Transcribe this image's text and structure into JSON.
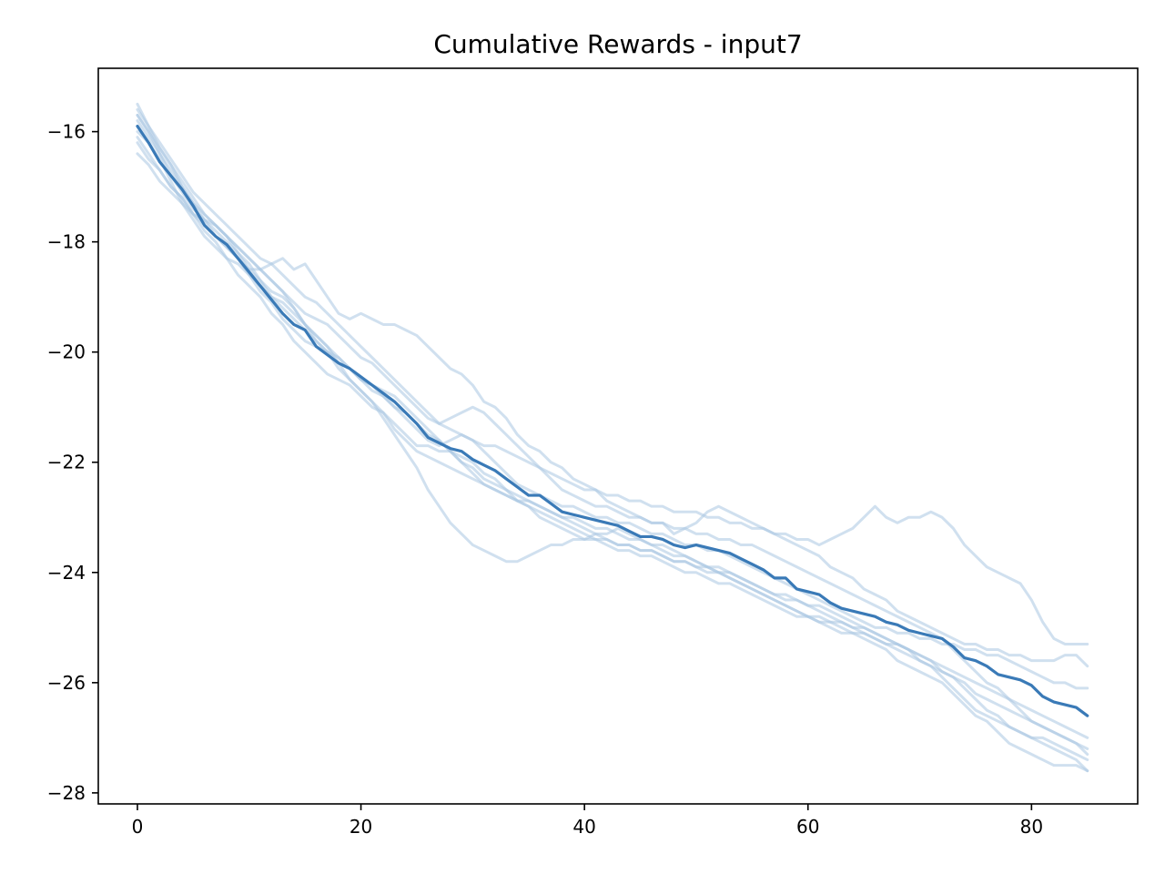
{
  "chart_data": {
    "type": "line",
    "title": "Cumulative Rewards - input7",
    "xlabel": "",
    "ylabel": "",
    "xlim": [
      -3.5,
      89.5
    ],
    "ylim": [
      -28.2,
      -14.85
    ],
    "xticks": [
      0,
      20,
      40,
      60,
      80
    ],
    "yticks": [
      -28,
      -26,
      -24,
      -22,
      -20,
      -18,
      -16
    ],
    "ytick_labels": [
      "−28",
      "−26",
      "−24",
      "−22",
      "−20",
      "−18",
      "−16"
    ],
    "grid": false,
    "legend": "none",
    "colors": {
      "run": "#aac7e2",
      "mean": "#3a7ab7"
    },
    "x": [
      0,
      1,
      2,
      3,
      4,
      5,
      6,
      7,
      8,
      9,
      10,
      11,
      12,
      13,
      14,
      15,
      16,
      17,
      18,
      19,
      20,
      21,
      22,
      23,
      24,
      25,
      26,
      27,
      28,
      29,
      30,
      31,
      32,
      33,
      34,
      35,
      36,
      37,
      38,
      39,
      40,
      41,
      42,
      43,
      44,
      45,
      46,
      47,
      48,
      49,
      50,
      51,
      52,
      53,
      54,
      55,
      56,
      57,
      58,
      59,
      60,
      61,
      62,
      63,
      64,
      65,
      66,
      67,
      68,
      69,
      70,
      71,
      72,
      73,
      74,
      75,
      76,
      77,
      78,
      79,
      80,
      81,
      82,
      83,
      84,
      85
    ],
    "series": [
      {
        "role": "mean",
        "values": [
          -15.9,
          -16.2,
          -16.55,
          -16.8,
          -17.05,
          -17.35,
          -17.7,
          -17.9,
          -18.05,
          -18.3,
          -18.55,
          -18.8,
          -19.05,
          -19.3,
          -19.5,
          -19.6,
          -19.9,
          -20.05,
          -20.2,
          -20.3,
          -20.45,
          -20.6,
          -20.75,
          -20.9,
          -21.1,
          -21.3,
          -21.55,
          -21.65,
          -21.75,
          -21.8,
          -21.95,
          -22.05,
          -22.15,
          -22.3,
          -22.45,
          -22.6,
          -22.6,
          -22.75,
          -22.9,
          -22.95,
          -23.0,
          -23.05,
          -23.1,
          -23.15,
          -23.25,
          -23.35,
          -23.35,
          -23.4,
          -23.5,
          -23.55,
          -23.5,
          -23.55,
          -23.6,
          -23.65,
          -23.75,
          -23.85,
          -23.95,
          -24.1,
          -24.1,
          -24.3,
          -24.35,
          -24.4,
          -24.55,
          -24.65,
          -24.7,
          -24.75,
          -24.8,
          -24.9,
          -24.95,
          -25.05,
          -25.1,
          -25.15,
          -25.2,
          -25.35,
          -25.55,
          -25.6,
          -25.7,
          -25.85,
          -25.9,
          -25.95,
          -26.05,
          -26.25,
          -26.35,
          -26.4,
          -26.45,
          -26.6
        ]
      },
      {
        "role": "run",
        "values": [
          -15.5,
          -15.9,
          -16.3,
          -16.6,
          -17.0,
          -17.3,
          -17.6,
          -17.8,
          -18.0,
          -18.2,
          -18.5,
          -18.7,
          -18.9,
          -19.0,
          -19.2,
          -19.5,
          -19.8,
          -20.0,
          -20.3,
          -20.5,
          -20.7,
          -20.9,
          -21.1,
          -21.4,
          -21.6,
          -21.8,
          -21.9,
          -22.0,
          -22.1,
          -22.2,
          -22.3,
          -22.4,
          -22.5,
          -22.6,
          -22.7,
          -22.8,
          -22.9,
          -23.0,
          -23.1,
          -23.2,
          -23.3,
          -23.4,
          -23.4,
          -23.5,
          -23.5,
          -23.6,
          -23.6,
          -23.7,
          -23.8,
          -23.8,
          -23.9,
          -23.9,
          -24.0,
          -24.0,
          -24.1,
          -24.2,
          -24.3,
          -24.4,
          -24.5,
          -24.5,
          -24.6,
          -24.6,
          -24.7,
          -24.8,
          -24.9,
          -25.0,
          -25.1,
          -25.2,
          -25.3,
          -25.4,
          -25.5,
          -25.6,
          -25.8,
          -25.9,
          -26.1,
          -26.3,
          -26.5,
          -26.6,
          -26.8,
          -26.9,
          -27.0,
          -27.1,
          -27.2,
          -27.3,
          -27.4,
          -27.6
        ]
      },
      {
        "role": "run",
        "values": [
          -15.7,
          -16.0,
          -16.4,
          -16.8,
          -17.1,
          -17.4,
          -17.6,
          -17.9,
          -18.1,
          -18.3,
          -18.5,
          -18.5,
          -18.4,
          -18.3,
          -18.5,
          -18.4,
          -18.7,
          -19.0,
          -19.3,
          -19.4,
          -19.3,
          -19.4,
          -19.5,
          -19.5,
          -19.6,
          -19.7,
          -19.9,
          -20.1,
          -20.3,
          -20.4,
          -20.6,
          -20.9,
          -21.0,
          -21.2,
          -21.5,
          -21.7,
          -21.8,
          -22.0,
          -22.1,
          -22.3,
          -22.4,
          -22.5,
          -22.7,
          -22.8,
          -22.9,
          -23.0,
          -23.1,
          -23.1,
          -23.3,
          -23.2,
          -23.1,
          -22.9,
          -22.8,
          -22.9,
          -23.0,
          -23.1,
          -23.2,
          -23.3,
          -23.4,
          -23.5,
          -23.6,
          -23.7,
          -23.9,
          -24.0,
          -24.1,
          -24.3,
          -24.4,
          -24.5,
          -24.7,
          -24.8,
          -24.9,
          -25.0,
          -25.1,
          -25.2,
          -25.3,
          -25.3,
          -25.4,
          -25.4,
          -25.5,
          -25.5,
          -25.6,
          -25.6,
          -25.6,
          -25.5,
          -25.5,
          -25.7
        ]
      },
      {
        "role": "run",
        "values": [
          -16.0,
          -16.2,
          -16.5,
          -16.9,
          -17.3,
          -17.6,
          -17.9,
          -18.1,
          -18.3,
          -18.4,
          -18.6,
          -18.8,
          -19.0,
          -19.1,
          -19.3,
          -19.5,
          -19.7,
          -19.9,
          -20.2,
          -20.5,
          -20.7,
          -20.9,
          -21.2,
          -21.5,
          -21.8,
          -22.1,
          -22.5,
          -22.8,
          -23.1,
          -23.3,
          -23.5,
          -23.6,
          -23.7,
          -23.8,
          -23.8,
          -23.7,
          -23.6,
          -23.5,
          -23.5,
          -23.4,
          -23.4,
          -23.3,
          -23.3,
          -23.2,
          -23.3,
          -23.4,
          -23.5,
          -23.5,
          -23.6,
          -23.7,
          -23.8,
          -23.9,
          -24.0,
          -24.1,
          -24.2,
          -24.3,
          -24.4,
          -24.5,
          -24.6,
          -24.7,
          -24.8,
          -24.8,
          -24.9,
          -24.9,
          -25.0,
          -25.0,
          -25.1,
          -25.2,
          -25.3,
          -25.4,
          -25.6,
          -25.7,
          -25.9,
          -26.1,
          -26.3,
          -26.5,
          -26.6,
          -26.7,
          -26.8,
          -26.9,
          -27.0,
          -27.0,
          -27.1,
          -27.2,
          -27.3,
          -27.4
        ]
      },
      {
        "role": "run",
        "values": [
          -16.2,
          -16.5,
          -16.7,
          -17.0,
          -17.2,
          -17.5,
          -17.8,
          -18.0,
          -18.3,
          -18.6,
          -18.8,
          -19.0,
          -19.3,
          -19.5,
          -19.8,
          -20.0,
          -20.2,
          -20.4,
          -20.5,
          -20.6,
          -20.8,
          -21.0,
          -21.1,
          -21.3,
          -21.5,
          -21.7,
          -21.7,
          -21.8,
          -21.8,
          -21.9,
          -22.0,
          -22.2,
          -22.3,
          -22.5,
          -22.7,
          -22.8,
          -23.0,
          -23.1,
          -23.2,
          -23.3,
          -23.4,
          -23.4,
          -23.5,
          -23.6,
          -23.6,
          -23.7,
          -23.7,
          -23.8,
          -23.9,
          -24.0,
          -24.0,
          -24.1,
          -24.2,
          -24.2,
          -24.3,
          -24.4,
          -24.5,
          -24.6,
          -24.7,
          -24.8,
          -24.8,
          -24.9,
          -25.0,
          -25.1,
          -25.1,
          -25.2,
          -25.3,
          -25.4,
          -25.6,
          -25.7,
          -25.8,
          -25.9,
          -26.0,
          -26.2,
          -26.4,
          -26.6,
          -26.7,
          -26.9,
          -27.1,
          -27.2,
          -27.3,
          -27.4,
          -27.5,
          -27.5,
          -27.5,
          -27.6
        ]
      },
      {
        "role": "run",
        "values": [
          -15.8,
          -16.1,
          -16.4,
          -16.7,
          -17.0,
          -17.3,
          -17.5,
          -17.7,
          -17.9,
          -18.2,
          -18.4,
          -18.7,
          -19.0,
          -19.2,
          -19.4,
          -19.6,
          -19.8,
          -20.0,
          -20.1,
          -20.3,
          -20.5,
          -20.6,
          -20.8,
          -21.0,
          -21.1,
          -21.3,
          -21.5,
          -21.6,
          -21.8,
          -22.0,
          -22.2,
          -22.4,
          -22.5,
          -22.6,
          -22.7,
          -22.7,
          -22.8,
          -22.9,
          -23.0,
          -23.1,
          -23.2,
          -23.3,
          -23.4,
          -23.5,
          -23.5,
          -23.6,
          -23.6,
          -23.7,
          -23.8,
          -23.8,
          -23.9,
          -24.0,
          -24.0,
          -24.1,
          -24.2,
          -24.3,
          -24.4,
          -24.5,
          -24.6,
          -24.7,
          -24.8,
          -24.9,
          -24.9,
          -25.0,
          -25.1,
          -25.1,
          -25.2,
          -25.3,
          -25.3,
          -25.4,
          -25.5,
          -25.6,
          -25.7,
          -25.8,
          -25.9,
          -26.0,
          -26.1,
          -26.2,
          -26.3,
          -26.4,
          -26.5,
          -26.6,
          -26.7,
          -26.8,
          -26.9,
          -27.0
        ]
      },
      {
        "role": "run",
        "values": [
          -16.4,
          -16.6,
          -16.9,
          -17.1,
          -17.3,
          -17.5,
          -17.6,
          -17.7,
          -17.9,
          -18.1,
          -18.3,
          -18.5,
          -18.7,
          -18.9,
          -19.2,
          -19.5,
          -19.7,
          -19.9,
          -20.1,
          -20.3,
          -20.5,
          -20.7,
          -20.8,
          -21.0,
          -21.2,
          -21.4,
          -21.6,
          -21.7,
          -21.6,
          -21.5,
          -21.6,
          -21.8,
          -22.0,
          -22.2,
          -22.4,
          -22.5,
          -22.6,
          -22.7,
          -22.8,
          -22.8,
          -22.9,
          -23.0,
          -23.0,
          -23.1,
          -23.1,
          -23.2,
          -23.3,
          -23.3,
          -23.4,
          -23.5,
          -23.5,
          -23.6,
          -23.6,
          -23.7,
          -23.8,
          -23.9,
          -24.0,
          -24.1,
          -24.2,
          -24.3,
          -24.4,
          -24.5,
          -24.6,
          -24.7,
          -24.8,
          -24.9,
          -25.0,
          -25.0,
          -25.1,
          -25.1,
          -25.2,
          -25.2,
          -25.3,
          -25.3,
          -25.4,
          -25.4,
          -25.5,
          -25.5,
          -25.6,
          -25.7,
          -25.8,
          -25.9,
          -26.0,
          -26.0,
          -26.1,
          -26.1
        ]
      },
      {
        "role": "run",
        "values": [
          -15.6,
          -15.9,
          -16.2,
          -16.5,
          -16.8,
          -17.1,
          -17.3,
          -17.5,
          -17.7,
          -17.9,
          -18.1,
          -18.3,
          -18.4,
          -18.6,
          -18.8,
          -19.0,
          -19.1,
          -19.3,
          -19.5,
          -19.7,
          -19.9,
          -20.1,
          -20.3,
          -20.5,
          -20.7,
          -20.9,
          -21.1,
          -21.3,
          -21.4,
          -21.5,
          -21.6,
          -21.7,
          -21.7,
          -21.8,
          -21.9,
          -22.0,
          -22.1,
          -22.2,
          -22.3,
          -22.4,
          -22.5,
          -22.5,
          -22.6,
          -22.6,
          -22.7,
          -22.7,
          -22.8,
          -22.8,
          -22.9,
          -22.9,
          -22.9,
          -23.0,
          -23.0,
          -23.1,
          -23.1,
          -23.2,
          -23.2,
          -23.3,
          -23.3,
          -23.4,
          -23.4,
          -23.5,
          -23.4,
          -23.3,
          -23.2,
          -23.0,
          -22.8,
          -23.0,
          -23.1,
          -23.0,
          -23.0,
          -22.9,
          -23.0,
          -23.2,
          -23.5,
          -23.7,
          -23.9,
          -24.0,
          -24.1,
          -24.2,
          -24.5,
          -24.9,
          -25.2,
          -25.3,
          -25.3,
          -25.3
        ]
      },
      {
        "role": "run",
        "values": [
          -16.1,
          -16.4,
          -16.7,
          -17.0,
          -17.2,
          -17.5,
          -17.7,
          -17.9,
          -18.1,
          -18.3,
          -18.6,
          -18.9,
          -19.1,
          -19.4,
          -19.6,
          -19.8,
          -19.9,
          -20.0,
          -20.2,
          -20.3,
          -20.5,
          -20.6,
          -20.7,
          -20.8,
          -21.0,
          -21.2,
          -21.4,
          -21.6,
          -21.8,
          -22.0,
          -22.1,
          -22.3,
          -22.4,
          -22.5,
          -22.6,
          -22.7,
          -22.8,
          -22.9,
          -23.0,
          -23.0,
          -23.1,
          -23.2,
          -23.2,
          -23.3,
          -23.4,
          -23.4,
          -23.5,
          -23.6,
          -23.7,
          -23.7,
          -23.8,
          -23.9,
          -23.9,
          -24.0,
          -24.1,
          -24.2,
          -24.3,
          -24.4,
          -24.4,
          -24.5,
          -24.6,
          -24.7,
          -24.8,
          -24.9,
          -25.0,
          -25.1,
          -25.2,
          -25.3,
          -25.4,
          -25.5,
          -25.6,
          -25.7,
          -25.8,
          -25.9,
          -26.0,
          -26.2,
          -26.3,
          -26.4,
          -26.5,
          -26.6,
          -26.7,
          -26.8,
          -26.9,
          -27.0,
          -27.1,
          -27.2
        ]
      },
      {
        "role": "run",
        "values": [
          -15.7,
          -16.0,
          -16.3,
          -16.6,
          -16.9,
          -17.2,
          -17.5,
          -17.7,
          -17.9,
          -18.1,
          -18.3,
          -18.5,
          -18.7,
          -18.9,
          -19.1,
          -19.3,
          -19.4,
          -19.5,
          -19.7,
          -19.9,
          -20.1,
          -20.2,
          -20.4,
          -20.6,
          -20.8,
          -21.0,
          -21.2,
          -21.3,
          -21.2,
          -21.1,
          -21.0,
          -21.1,
          -21.3,
          -21.5,
          -21.7,
          -21.9,
          -22.1,
          -22.3,
          -22.5,
          -22.6,
          -22.7,
          -22.8,
          -22.8,
          -22.9,
          -23.0,
          -23.0,
          -23.1,
          -23.1,
          -23.2,
          -23.2,
          -23.3,
          -23.3,
          -23.4,
          -23.4,
          -23.5,
          -23.5,
          -23.6,
          -23.7,
          -23.8,
          -23.9,
          -24.0,
          -24.1,
          -24.2,
          -24.3,
          -24.4,
          -24.5,
          -24.6,
          -24.7,
          -24.8,
          -24.9,
          -25.0,
          -25.1,
          -25.2,
          -25.4,
          -25.6,
          -25.8,
          -26.0,
          -26.1,
          -26.3,
          -26.5,
          -26.7,
          -26.8,
          -26.9,
          -27.0,
          -27.1,
          -27.3
        ]
      }
    ]
  }
}
